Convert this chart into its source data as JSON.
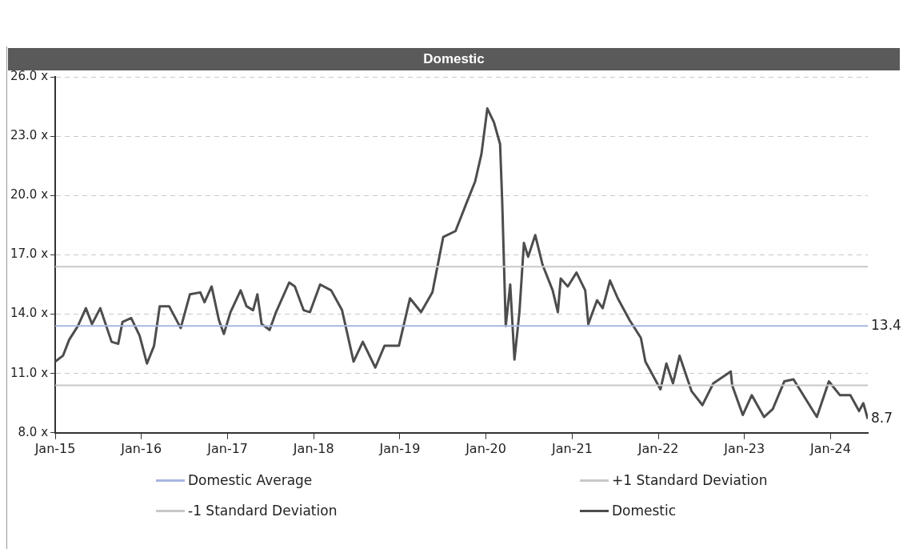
{
  "chart_data": {
    "type": "line",
    "title": "Domestic",
    "xlim": [
      "2015-01-01",
      "2024-06-07"
    ],
    "xticks": [
      {
        "value": "2015-01",
        "label": "Jan-15"
      },
      {
        "value": "2016-01",
        "label": "Jan-16"
      },
      {
        "value": "2017-01",
        "label": "Jan-17"
      },
      {
        "value": "2018-01",
        "label": "Jan-18"
      },
      {
        "value": "2019-01",
        "label": "Jan-19"
      },
      {
        "value": "2020-01",
        "label": "Jan-20"
      },
      {
        "value": "2021-01",
        "label": "Jan-21"
      },
      {
        "value": "2022-01",
        "label": "Jan-22"
      },
      {
        "value": "2023-01",
        "label": "Jan-23"
      },
      {
        "value": "2024-01",
        "label": "Jan-24"
      }
    ],
    "ylim": [
      8,
      26
    ],
    "yticks": [
      {
        "value": 8,
        "label": "8.0 x"
      },
      {
        "value": 11,
        "label": "11.0 x"
      },
      {
        "value": 14,
        "label": "14.0 x"
      },
      {
        "value": 17,
        "label": "17.0 x"
      },
      {
        "value": 20,
        "label": "20.0 x"
      },
      {
        "value": 23,
        "label": "23.0 x"
      },
      {
        "value": 26,
        "label": "26.0 x"
      }
    ],
    "grid": "y",
    "legend": "bottom",
    "marker": "none",
    "series": [
      {
        "name": "Domestic Average",
        "color": "#a9b6e2",
        "x": [
          "2015-01-01",
          "2024-06-07"
        ],
        "values": [
          13.4,
          13.4
        ]
      },
      {
        "name": "+1 Standard Deviation",
        "color": "#c8c8c8",
        "x": [
          "2015-01-01",
          "2024-06-07"
        ],
        "values": [
          16.4,
          16.4
        ]
      },
      {
        "name": "-1 Standard Deviation",
        "color": "#c8c8c8",
        "x": [
          "2015-01-01",
          "2024-06-07"
        ],
        "values": [
          10.4,
          10.4
        ]
      },
      {
        "name": "Domestic",
        "color": "#4d4d4d",
        "x": [
          "2015-01-01",
          "2015-02-03",
          "2015-03-01",
          "2015-04-07",
          "2015-05-11",
          "2015-06-06",
          "2015-07-11",
          "2015-08-28",
          "2015-09-25",
          "2015-10-13",
          "2015-11-19",
          "2015-12-25",
          "2016-01-25",
          "2016-02-24",
          "2016-03-19",
          "2016-04-28",
          "2016-06-16",
          "2016-07-25",
          "2016-09-07",
          "2016-09-25",
          "2016-10-25",
          "2016-11-25",
          "2016-12-16",
          "2017-01-13",
          "2017-02-25",
          "2017-03-22",
          "2017-04-19",
          "2017-05-07",
          "2017-05-25",
          "2017-06-28",
          "2017-07-25",
          "2017-09-19",
          "2017-10-13",
          "2017-11-19",
          "2017-12-16",
          "2018-01-28",
          "2018-03-16",
          "2018-05-01",
          "2018-06-19",
          "2018-07-28",
          "2018-09-19",
          "2018-10-28",
          "2018-12-28",
          "2019-02-13",
          "2019-04-01",
          "2019-05-19",
          "2019-07-04",
          "2019-08-25",
          "2019-10-10",
          "2019-11-16",
          "2019-12-13",
          "2020-01-07",
          "2020-02-04",
          "2020-03-01",
          "2020-03-10",
          "2020-03-25",
          "2020-04-13",
          "2020-05-01",
          "2020-05-22",
          "2020-06-10",
          "2020-06-28",
          "2020-07-28",
          "2020-08-28",
          "2020-10-10",
          "2020-11-01",
          "2020-11-13",
          "2020-12-13",
          "2021-01-19",
          "2021-02-25",
          "2021-03-10",
          "2021-04-16",
          "2021-05-10",
          "2021-06-10",
          "2021-07-13",
          "2021-09-01",
          "2021-10-19",
          "2021-11-07",
          "2022-01-10",
          "2022-02-04",
          "2022-03-04",
          "2022-04-01",
          "2022-05-22",
          "2022-07-07",
          "2022-08-22",
          "2022-11-04",
          "2022-11-10",
          "2022-12-25",
          "2023-02-01",
          "2023-03-25",
          "2023-05-01",
          "2023-06-19",
          "2023-07-28",
          "2023-11-04",
          "2023-12-25",
          "2024-02-10",
          "2024-03-25",
          "2024-05-01",
          "2024-05-19",
          "2024-06-07"
        ],
        "values": [
          11.6,
          11.9,
          12.7,
          13.4,
          14.3,
          13.5,
          14.3,
          12.6,
          12.5,
          13.6,
          13.8,
          12.9,
          11.5,
          12.4,
          14.4,
          14.4,
          13.3,
          15.0,
          15.1,
          14.6,
          15.4,
          13.7,
          13.0,
          14.1,
          15.2,
          14.4,
          14.2,
          15.0,
          13.5,
          13.2,
          14.1,
          15.6,
          15.4,
          14.2,
          14.1,
          15.5,
          15.2,
          14.2,
          11.6,
          12.6,
          11.3,
          12.4,
          12.4,
          14.8,
          14.1,
          15.1,
          17.9,
          18.2,
          19.6,
          20.7,
          22.1,
          24.4,
          23.7,
          22.6,
          19.7,
          13.4,
          15.5,
          11.7,
          14.1,
          17.6,
          16.9,
          18.0,
          16.5,
          15.2,
          14.1,
          15.8,
          15.4,
          16.1,
          15.2,
          13.5,
          14.7,
          14.3,
          15.7,
          14.8,
          13.7,
          12.8,
          11.6,
          10.2,
          11.5,
          10.5,
          11.9,
          10.1,
          9.4,
          10.5,
          11.1,
          10.4,
          8.9,
          9.9,
          8.8,
          9.2,
          10.6,
          10.7,
          8.8,
          10.6,
          9.9,
          9.9,
          9.1,
          9.5,
          8.7
        ]
      }
    ],
    "annotations": [
      {
        "text": "13.4",
        "x": "2024-06-07",
        "y": 13.4
      },
      {
        "text": "8.7",
        "x": "2024-06-07",
        "y": 8.7
      }
    ]
  }
}
